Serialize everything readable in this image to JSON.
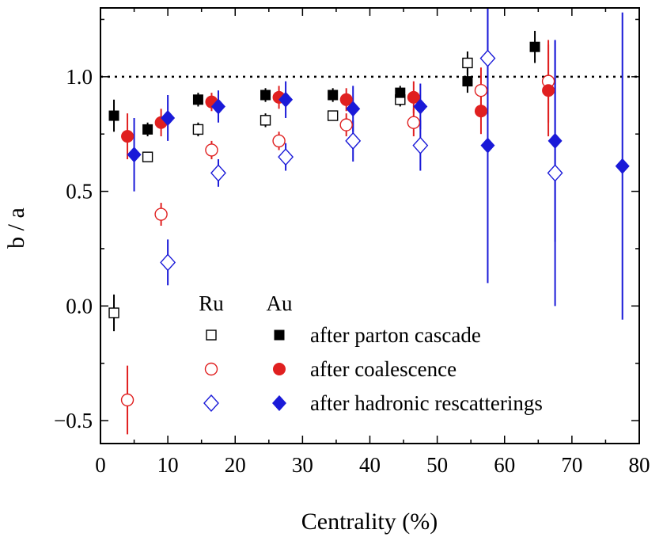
{
  "chart_data": {
    "type": "scatter",
    "title": "",
    "xlabel": "Centrality (%)",
    "ylabel": "b / a",
    "xlim": [
      0,
      80
    ],
    "ylim": [
      -0.6,
      1.3
    ],
    "xticks": [
      0,
      10,
      20,
      30,
      40,
      50,
      60,
      70,
      80
    ],
    "xtick_labels": [
      "0",
      "10",
      "20",
      "30",
      "40",
      "50",
      "60",
      "70",
      "80"
    ],
    "yticks": [
      -0.5,
      0.0,
      0.5,
      1.0
    ],
    "ytick_labels": [
      "−0.5",
      "0.0",
      "0.5",
      "1.0"
    ],
    "reference_line": 1.0,
    "legend": {
      "placement": "bottom-center",
      "col_headers": [
        "Ru",
        "Au"
      ],
      "rows": [
        "after parton cascade",
        "after coalescence",
        "after hadronic rescatterings"
      ]
    },
    "series": [
      {
        "name": "Ru after parton cascade",
        "system": "Ru",
        "stage": "after parton cascade",
        "marker": "square",
        "filled": false,
        "color": "#000000",
        "x": [
          2,
          7,
          14.5,
          24.5,
          34.5,
          44.5,
          54.5
        ],
        "y": [
          -0.03,
          0.65,
          0.77,
          0.81,
          0.83,
          0.9,
          1.06
        ],
        "err": [
          0.08,
          0.02,
          0.03,
          0.03,
          0.02,
          0.03,
          0.05
        ]
      },
      {
        "name": "Au after parton cascade",
        "system": "Au",
        "stage": "after parton cascade",
        "marker": "square",
        "filled": true,
        "color": "#000000",
        "x": [
          2,
          7,
          14.5,
          24.5,
          34.5,
          44.5,
          54.5,
          64.5
        ],
        "y": [
          0.83,
          0.77,
          0.9,
          0.92,
          0.92,
          0.93,
          0.98,
          1.13
        ],
        "err": [
          0.07,
          0.03,
          0.03,
          0.03,
          0.03,
          0.03,
          0.05,
          0.07
        ]
      },
      {
        "name": "Ru after coalescence",
        "system": "Ru",
        "stage": "after coalescence",
        "marker": "circle",
        "filled": false,
        "color": "#e02020",
        "x": [
          4,
          9,
          16.5,
          26.5,
          36.5,
          46.5,
          56.5,
          66.5
        ],
        "y": [
          -0.41,
          0.4,
          0.68,
          0.72,
          0.79,
          0.8,
          0.94,
          0.98
        ],
        "err": [
          0.15,
          0.05,
          0.04,
          0.04,
          0.05,
          0.06,
          0.1,
          0.18
        ]
      },
      {
        "name": "Au after coalescence",
        "system": "Au",
        "stage": "after coalescence",
        "marker": "circle",
        "filled": true,
        "color": "#e02020",
        "x": [
          4,
          9,
          16.5,
          26.5,
          36.5,
          46.5,
          56.5,
          66.5
        ],
        "y": [
          0.74,
          0.8,
          0.89,
          0.91,
          0.9,
          0.91,
          0.85,
          0.94
        ],
        "err": [
          0.1,
          0.06,
          0.04,
          0.05,
          0.05,
          0.07,
          0.1,
          0.2
        ]
      },
      {
        "name": "Ru after hadronic rescatterings",
        "system": "Ru",
        "stage": "after hadronic rescatterings",
        "marker": "diamond",
        "filled": false,
        "color": "#1a1ad8",
        "x": [
          10,
          17.5,
          27.5,
          37.5,
          47.5,
          57.5,
          67.5
        ],
        "y": [
          0.19,
          0.58,
          0.65,
          0.72,
          0.7,
          1.08,
          0.58
        ],
        "err": [
          0.1,
          0.06,
          0.06,
          0.09,
          0.11,
          0.22,
          0.58
        ]
      },
      {
        "name": "Au after hadronic rescatterings",
        "system": "Au",
        "stage": "after hadronic rescatterings",
        "marker": "diamond",
        "filled": true,
        "color": "#1a1ad8",
        "x": [
          5,
          10,
          17.5,
          27.5,
          37.5,
          47.5,
          57.5,
          67.5,
          77.5
        ],
        "y": [
          0.66,
          0.82,
          0.87,
          0.9,
          0.86,
          0.87,
          0.7,
          0.72,
          0.61
        ],
        "err": [
          0.16,
          0.1,
          0.07,
          0.08,
          0.1,
          0.1,
          0.6,
          0.44,
          0.67
        ]
      }
    ]
  }
}
